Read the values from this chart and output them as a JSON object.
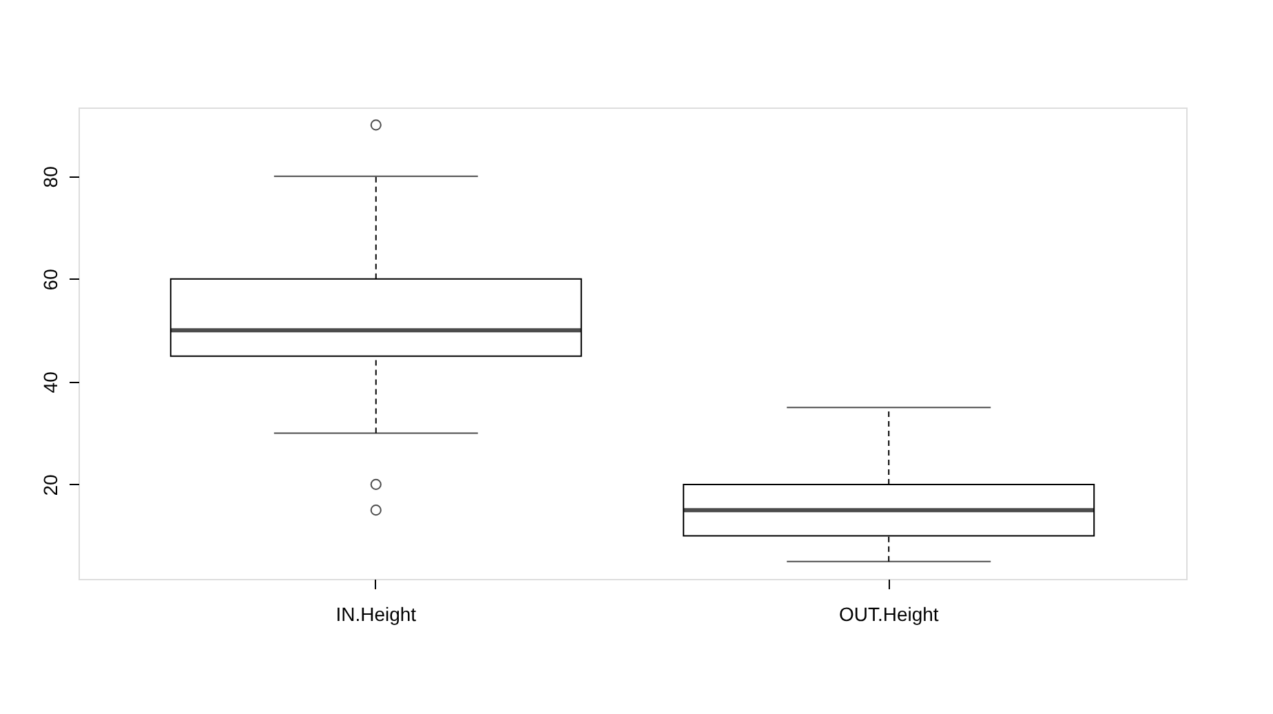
{
  "chart_data": {
    "type": "box",
    "categories": [
      "IN.Height",
      "OUT.Height"
    ],
    "boxes": [
      {
        "low": 30,
        "q1": 45,
        "median": 50,
        "q3": 60,
        "high": 80,
        "outliers": [
          90,
          20,
          15
        ]
      },
      {
        "low": 5,
        "q1": 10,
        "median": 15,
        "q3": 20,
        "high": 35
      }
    ],
    "ylim": [
      1.6,
      93.4
    ],
    "yticks": [
      20,
      40,
      60,
      80
    ],
    "grid": false
  }
}
